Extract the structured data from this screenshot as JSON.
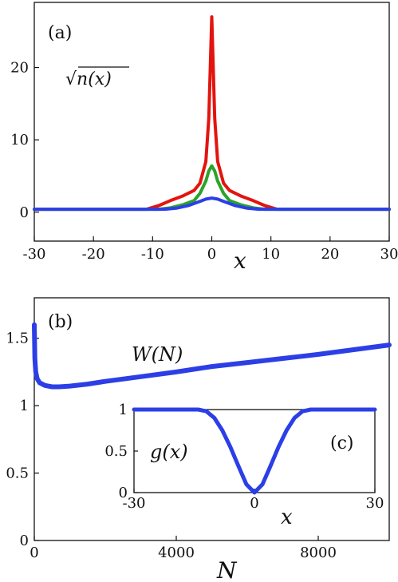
{
  "chart_data": [
    {
      "type": "line",
      "panel_label": "(a)",
      "xlabel": "x",
      "ylabel": "",
      "annotation": "√n(x)",
      "xlim": [
        -30,
        30
      ],
      "ylim": [
        -4,
        29
      ],
      "xticks": [
        "-30",
        "-20",
        "-10",
        "0",
        "10",
        "20",
        "30"
      ],
      "yticks": [
        "0",
        "10",
        "20"
      ],
      "series": [
        {
          "color": "#e3140f",
          "x": [
            -30,
            -11,
            -9,
            -7,
            -5,
            -3,
            -2,
            -1,
            -0.5,
            0,
            0.5,
            1,
            2,
            3,
            5,
            7,
            9,
            11,
            30
          ],
          "y": [
            0.4,
            0.4,
            0.9,
            1.6,
            2.2,
            3.0,
            4.0,
            7.0,
            13.0,
            27.0,
            13.0,
            7.0,
            4.0,
            3.0,
            2.2,
            1.6,
            0.9,
            0.4,
            0.4
          ]
        },
        {
          "color": "#2ba32b",
          "x": [
            -30,
            -9,
            -7,
            -5,
            -3,
            -2,
            -1,
            -0.5,
            0,
            0.5,
            1,
            2,
            3,
            5,
            7,
            9,
            30
          ],
          "y": [
            0.4,
            0.4,
            0.6,
            1.0,
            1.6,
            2.6,
            4.3,
            5.7,
            6.4,
            5.7,
            4.3,
            2.6,
            1.6,
            1.0,
            0.6,
            0.4,
            0.4
          ]
        },
        {
          "color": "#2c3fe6",
          "x": [
            -30,
            -8,
            -6,
            -4,
            -2,
            -1,
            0,
            1,
            2,
            4,
            6,
            8,
            30
          ],
          "y": [
            0.4,
            0.4,
            0.55,
            0.9,
            1.5,
            1.8,
            1.95,
            1.8,
            1.5,
            0.9,
            0.55,
            0.4,
            0.4
          ]
        }
      ]
    },
    {
      "type": "line",
      "panel_label": "(b)",
      "xlabel": "N",
      "ylabel": "",
      "annotation": "W(N)",
      "xlim": [
        0,
        10000
      ],
      "ylim": [
        0,
        1.8
      ],
      "xticks": [
        "0",
        "4000",
        "8000"
      ],
      "yticks": [
        "0",
        "0.5",
        "1",
        "1.5"
      ],
      "series": [
        {
          "color": "#2c3fe6",
          "x": [
            0,
            15,
            40,
            80,
            150,
            300,
            500,
            700,
            1000,
            1500,
            2000,
            3000,
            4000,
            5000,
            6000,
            7000,
            8000,
            9000,
            10000
          ],
          "y": [
            1.6,
            1.35,
            1.25,
            1.2,
            1.17,
            1.15,
            1.14,
            1.14,
            1.145,
            1.16,
            1.18,
            1.215,
            1.25,
            1.29,
            1.32,
            1.35,
            1.38,
            1.415,
            1.45
          ]
        }
      ]
    },
    {
      "type": "line",
      "panel_label": "(c)",
      "xlabel": "x",
      "ylabel": "",
      "annotation": "g(x)",
      "xlim": [
        -30,
        30
      ],
      "ylim": [
        0,
        1
      ],
      "xticks": [
        "-30",
        "0",
        "30"
      ],
      "yticks": [
        "0",
        "0.5",
        "1"
      ],
      "series": [
        {
          "color": "#2c3fe6",
          "x": [
            -30,
            -14,
            -12,
            -10,
            -8,
            -6,
            -4,
            -2,
            0,
            2,
            4,
            6,
            8,
            10,
            12,
            14,
            30
          ],
          "y": [
            1,
            1,
            0.98,
            0.9,
            0.75,
            0.55,
            0.32,
            0.1,
            0,
            0.1,
            0.32,
            0.55,
            0.75,
            0.9,
            0.98,
            1,
            1
          ]
        }
      ]
    }
  ]
}
